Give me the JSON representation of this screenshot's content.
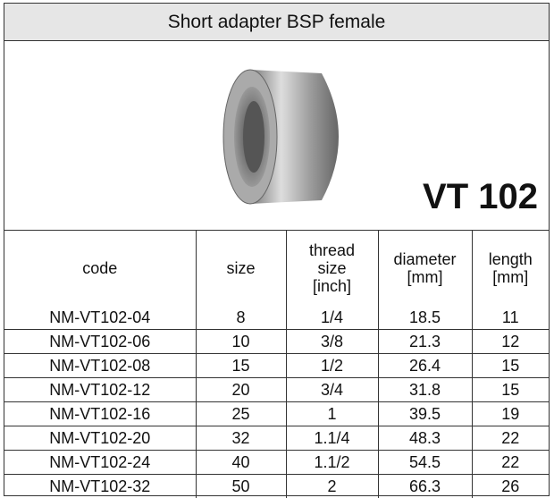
{
  "header": {
    "title": "Short adapter BSP female",
    "model": "VT 102"
  },
  "table": {
    "columns": [
      [
        "code"
      ],
      [
        "size"
      ],
      [
        "thread",
        "size",
        "[inch]"
      ],
      [
        "diameter",
        "[mm]"
      ],
      [
        "length",
        "[mm]"
      ]
    ],
    "rows": [
      [
        "NM-VT102-04",
        "8",
        "1/4",
        "18.5",
        "11"
      ],
      [
        "NM-VT102-06",
        "10",
        "3/8",
        "21.3",
        "12"
      ],
      [
        "NM-VT102-08",
        "15",
        "1/2",
        "26.4",
        "15"
      ],
      [
        "NM-VT102-12",
        "20",
        "3/4",
        "31.8",
        "15"
      ],
      [
        "NM-VT102-16",
        "25",
        "1",
        "39.5",
        "19"
      ],
      [
        "NM-VT102-20",
        "32",
        "1.1/4",
        "48.3",
        "22"
      ],
      [
        "NM-VT102-24",
        "40",
        "1.1/2",
        "54.5",
        "22"
      ],
      [
        "NM-VT102-32",
        "50",
        "2",
        "66.3",
        "26"
      ]
    ]
  }
}
